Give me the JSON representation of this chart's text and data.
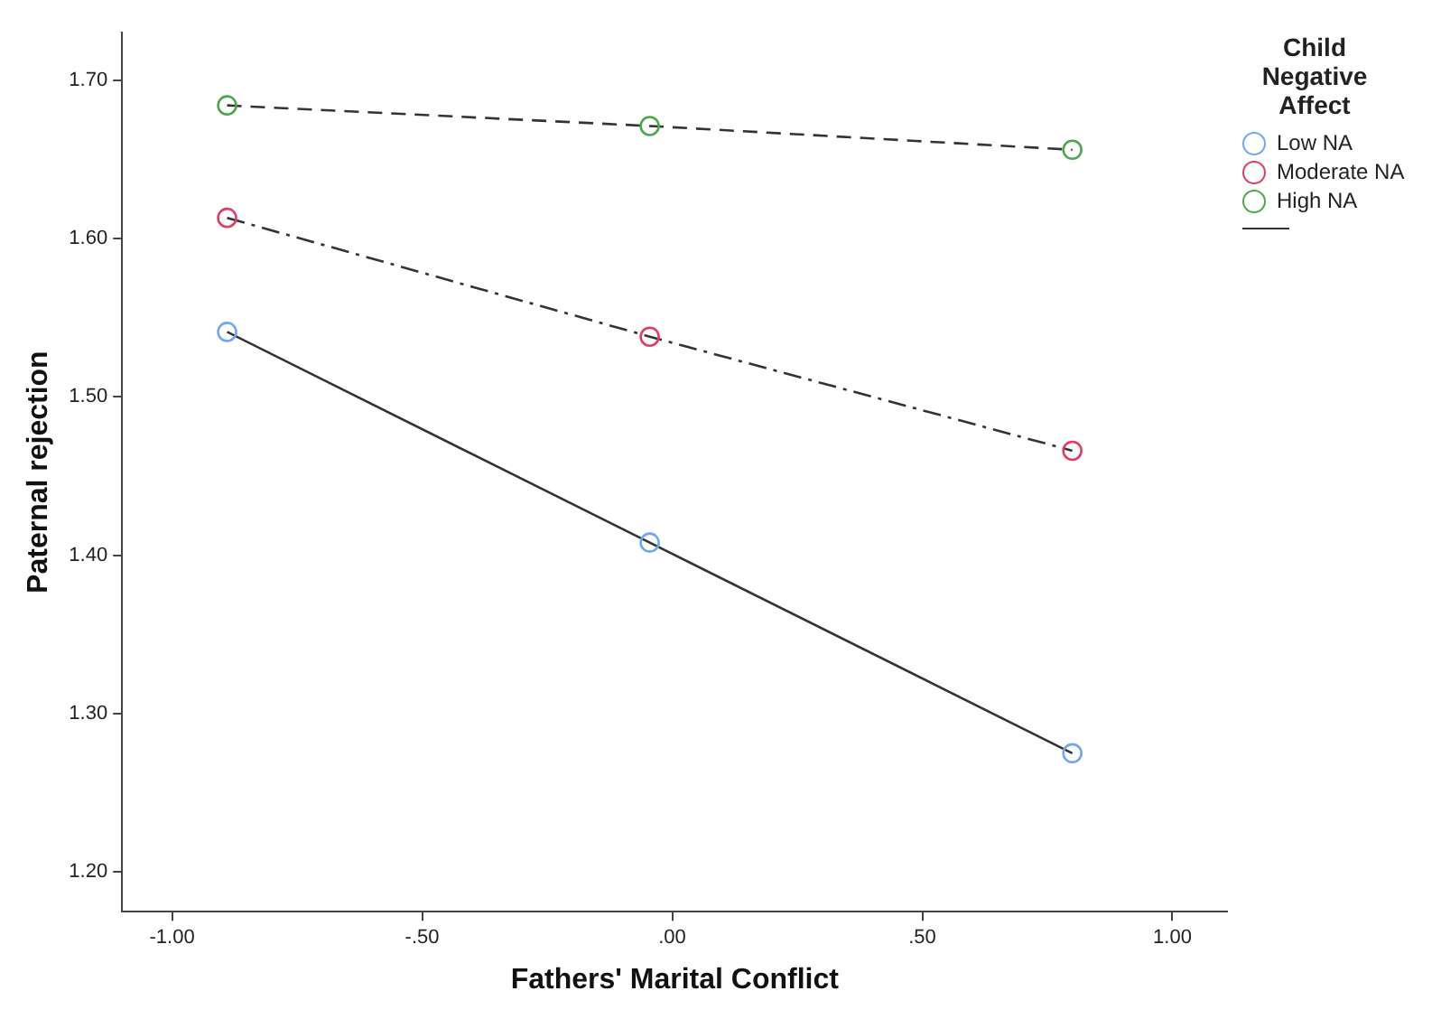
{
  "chart_data": {
    "type": "line",
    "xlabel": "Fathers' Marital Conflict",
    "ylabel": "Paternal rejection",
    "legend_title": "Child Negative Affect",
    "x": [
      -0.89,
      -0.045,
      0.8
    ],
    "series": [
      {
        "name": "Low NA",
        "color": "#6fa8f0",
        "values": [
          1.541,
          1.408,
          1.275
        ],
        "line_style": "solid"
      },
      {
        "name": "Moderate NA",
        "color": "#e03c64",
        "values": [
          1.613,
          1.538,
          1.466
        ],
        "line_style": "dashdot"
      },
      {
        "name": "High NA",
        "color": "#4ca84c",
        "values": [
          1.684,
          1.671,
          1.656
        ],
        "line_style": "dashed"
      }
    ],
    "xlim": [
      -1.1,
      1.11
    ],
    "ylim": [
      1.175,
      1.73
    ],
    "xticks": [
      {
        "value": -1,
        "label": "-1.00"
      },
      {
        "value": -0.5,
        "label": "-.50"
      },
      {
        "value": 0,
        "label": ".00"
      },
      {
        "value": 0.5,
        "label": ".50"
      },
      {
        "value": 1,
        "label": "1.00"
      }
    ],
    "yticks": [
      {
        "value": 1.2,
        "label": "1.20"
      },
      {
        "value": 1.3,
        "label": "1.30"
      },
      {
        "value": 1.4,
        "label": "1.40"
      },
      {
        "value": 1.5,
        "label": "1.50"
      },
      {
        "value": 1.6,
        "label": "1.60"
      },
      {
        "value": 1.7,
        "label": "1.70"
      }
    ],
    "marker": "circle",
    "grid": false,
    "legend": "top right"
  }
}
